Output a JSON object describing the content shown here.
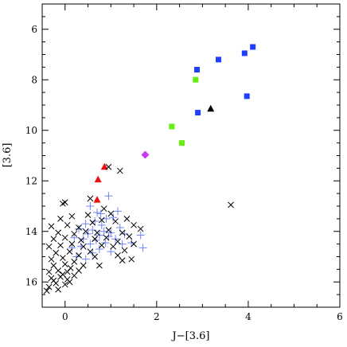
{
  "chart_data": {
    "type": "scatter",
    "xlabel": "J−[3.6]",
    "ylabel": "[3.6]",
    "xlim": [
      -0.5,
      6
    ],
    "ylim": [
      17.0,
      5.0
    ],
    "y_inverted": true,
    "x_major_ticks": [
      0,
      2,
      4,
      6
    ],
    "y_major_ticks": [
      6,
      8,
      10,
      12,
      14,
      16
    ],
    "x_minor_step": 0.5,
    "y_minor_step": 0.5,
    "grid": false,
    "legend": "none",
    "series": [
      {
        "marker": "square",
        "color": "#1f3fff",
        "points": [
          [
            4.1,
            6.7
          ],
          [
            3.92,
            6.95
          ],
          [
            3.35,
            7.2
          ],
          [
            2.88,
            7.6
          ],
          [
            3.97,
            8.65
          ],
          [
            2.9,
            9.3
          ]
        ]
      },
      {
        "marker": "square",
        "color": "#66ee11",
        "points": [
          [
            2.85,
            8.0
          ],
          [
            2.33,
            9.85
          ],
          [
            2.55,
            10.5
          ]
        ]
      },
      {
        "marker": "triangle",
        "color": "#000000",
        "points": [
          [
            3.18,
            9.15
          ]
        ]
      },
      {
        "marker": "diamond",
        "color": "#c93af0",
        "points": [
          [
            1.75,
            10.97
          ]
        ]
      },
      {
        "marker": "triangle",
        "color": "#ee1111",
        "points": [
          [
            0.86,
            11.45
          ],
          [
            0.72,
            11.95
          ],
          [
            0.7,
            12.75
          ]
        ]
      },
      {
        "marker": "plus",
        "color": "#6f86f2",
        "points": [
          [
            0.95,
            12.6
          ],
          [
            0.55,
            13.0
          ],
          [
            0.78,
            13.3
          ],
          [
            0.9,
            13.5
          ],
          [
            1.05,
            13.45
          ],
          [
            0.65,
            13.6
          ],
          [
            0.45,
            13.7
          ],
          [
            1.2,
            13.85
          ],
          [
            0.3,
            13.9
          ],
          [
            0.85,
            14.0
          ],
          [
            0.6,
            13.95
          ],
          [
            1.0,
            14.05
          ],
          [
            0.5,
            14.1
          ],
          [
            0.75,
            14.15
          ],
          [
            1.3,
            14.1
          ],
          [
            0.95,
            14.2
          ],
          [
            0.2,
            14.25
          ],
          [
            0.4,
            14.3
          ],
          [
            0.68,
            14.35
          ],
          [
            1.1,
            14.3
          ],
          [
            0.88,
            14.45
          ],
          [
            0.55,
            14.5
          ],
          [
            1.25,
            14.5
          ],
          [
            0.35,
            14.6
          ],
          [
            0.15,
            14.65
          ],
          [
            0.75,
            14.7
          ],
          [
            1.0,
            14.8
          ],
          [
            0.6,
            14.85
          ],
          [
            0.25,
            15.0
          ],
          [
            0.45,
            15.1
          ],
          [
            1.65,
            14.15
          ],
          [
            1.45,
            14.45
          ],
          [
            1.7,
            14.65
          ],
          [
            0.8,
            13.75
          ],
          [
            1.15,
            13.2
          ],
          [
            0.7,
            13.25
          ]
        ]
      },
      {
        "marker": "cross",
        "color": "#000000",
        "points": [
          [
            0.95,
            11.45
          ],
          [
            1.2,
            11.6
          ],
          [
            3.62,
            12.95
          ],
          [
            0.0,
            12.85
          ],
          [
            -0.05,
            12.9
          ],
          [
            0.55,
            12.7
          ],
          [
            0.85,
            13.1
          ],
          [
            1.35,
            13.5
          ],
          [
            -0.1,
            13.5
          ],
          [
            0.15,
            13.4
          ],
          [
            0.5,
            13.35
          ],
          [
            1.0,
            13.3
          ],
          [
            1.5,
            13.75
          ],
          [
            1.65,
            13.9
          ],
          [
            -0.3,
            13.8
          ],
          [
            0.05,
            13.75
          ],
          [
            0.3,
            13.85
          ],
          [
            0.6,
            13.65
          ],
          [
            0.8,
            13.55
          ],
          [
            1.1,
            13.6
          ],
          [
            -0.15,
            14.05
          ],
          [
            0.2,
            14.1
          ],
          [
            0.45,
            14.0
          ],
          [
            0.7,
            14.05
          ],
          [
            0.95,
            13.95
          ],
          [
            1.25,
            14.05
          ],
          [
            1.4,
            14.2
          ],
          [
            -0.25,
            14.3
          ],
          [
            0.0,
            14.25
          ],
          [
            0.35,
            14.35
          ],
          [
            0.65,
            14.3
          ],
          [
            0.9,
            14.25
          ],
          [
            1.15,
            14.4
          ],
          [
            1.5,
            14.5
          ],
          [
            -0.35,
            14.6
          ],
          [
            -0.1,
            14.55
          ],
          [
            0.15,
            14.5
          ],
          [
            0.4,
            14.6
          ],
          [
            0.8,
            14.55
          ],
          [
            1.05,
            14.6
          ],
          [
            1.3,
            14.75
          ],
          [
            -0.2,
            14.85
          ],
          [
            0.1,
            14.8
          ],
          [
            0.3,
            14.95
          ],
          [
            0.55,
            14.8
          ],
          [
            1.15,
            14.95
          ],
          [
            -0.3,
            15.1
          ],
          [
            -0.05,
            15.05
          ],
          [
            0.2,
            15.2
          ],
          [
            0.65,
            15.0
          ],
          [
            1.25,
            15.15
          ],
          [
            1.45,
            15.1
          ],
          [
            -0.25,
            15.35
          ],
          [
            0.0,
            15.3
          ],
          [
            0.12,
            15.45
          ],
          [
            0.4,
            15.35
          ],
          [
            0.75,
            15.35
          ],
          [
            -0.35,
            15.6
          ],
          [
            -0.15,
            15.55
          ],
          [
            0.05,
            15.6
          ],
          [
            0.3,
            15.55
          ],
          [
            -0.3,
            15.85
          ],
          [
            -0.1,
            15.8
          ],
          [
            0.05,
            15.9
          ],
          [
            -0.2,
            16.05
          ],
          [
            0.0,
            16.1
          ],
          [
            -0.35,
            16.2
          ],
          [
            -0.15,
            16.3
          ],
          [
            -0.05,
            15.7
          ],
          [
            -0.4,
            16.35
          ],
          [
            0.1,
            16.0
          ],
          [
            -0.25,
            15.95
          ],
          [
            0.2,
            15.75
          ]
        ]
      }
    ]
  }
}
